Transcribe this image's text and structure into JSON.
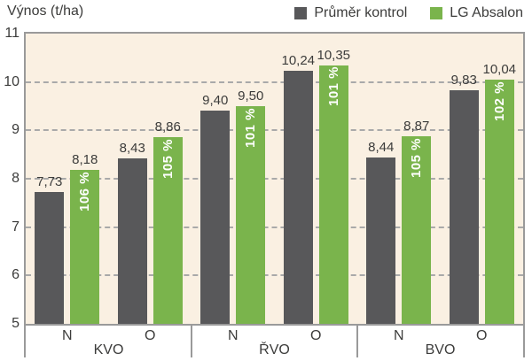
{
  "title": "Výnos (t/ha)",
  "legend": {
    "items": [
      {
        "label": "Průměr kontrol",
        "color": "#58585a"
      },
      {
        "label": "LG Absalon",
        "color": "#7ab44c"
      }
    ]
  },
  "colors": {
    "kontrol_bar": "#58585a",
    "absalon_bar": "#7ab44c",
    "plot_background": "#faf0e2",
    "plot_border": "#9a9a9a",
    "gridline": "#a9a9a9",
    "text": "#3c3c3b",
    "pct_text": "#ffffff"
  },
  "chart_data": {
    "type": "bar",
    "title": "Výnos (t/ha)",
    "ylabel": "Výnos (t/ha)",
    "ylim": [
      5,
      11
    ],
    "yticks": [
      "11",
      "10",
      "9",
      "8",
      "7",
      "6",
      "5"
    ],
    "ytick_values": [
      11,
      10,
      9,
      8,
      7,
      6,
      5
    ],
    "grid": "horizontal-dashed",
    "legend_position": "top-right",
    "series_names": [
      "Průměr kontrol",
      "LG Absalon"
    ],
    "groups": [
      {
        "label": "KVO",
        "subgroups": [
          {
            "label": "N",
            "kontrol": 7.73,
            "kontrol_label": "7,73",
            "absalon": 8.18,
            "absalon_label": "8,18",
            "pct": "106 %"
          },
          {
            "label": "O",
            "kontrol": 8.43,
            "kontrol_label": "8,43",
            "absalon": 8.86,
            "absalon_label": "8,86",
            "pct": "105 %"
          }
        ]
      },
      {
        "label": "ŘVO",
        "subgroups": [
          {
            "label": "N",
            "kontrol": 9.4,
            "kontrol_label": "9,40",
            "absalon": 9.5,
            "absalon_label": "9,50",
            "pct": "101 %"
          },
          {
            "label": "O",
            "kontrol": 10.24,
            "kontrol_label": "10,24",
            "absalon": 10.35,
            "absalon_label": "10,35",
            "pct": "101 %"
          }
        ]
      },
      {
        "label": "BVO",
        "subgroups": [
          {
            "label": "N",
            "kontrol": 8.44,
            "kontrol_label": "8,44",
            "absalon": 8.87,
            "absalon_label": "8,87",
            "pct": "105 %"
          },
          {
            "label": "O",
            "kontrol": 9.83,
            "kontrol_label": "9,83",
            "absalon": 10.04,
            "absalon_label": "10,04",
            "pct": "102 %"
          }
        ]
      }
    ]
  }
}
